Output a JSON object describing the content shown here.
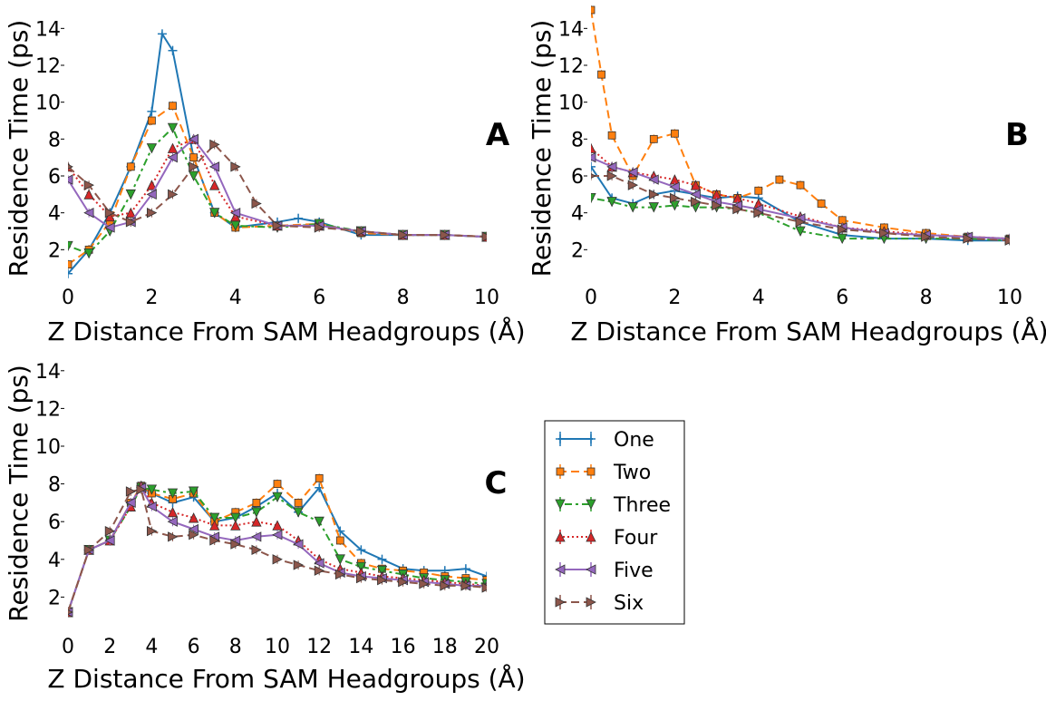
{
  "colors": {
    "One": "#1f77b4",
    "Two": "#ff7f0e",
    "Three": "#2ca02c",
    "Four": "#d62728",
    "Five": "#9467bd",
    "Six": "#8c564b"
  },
  "legend": [
    "One",
    "Two",
    "Three",
    "Four",
    "Five",
    "Six"
  ],
  "chart_data": [
    {
      "type": "line",
      "panel": "A",
      "xlabel": "Z Distance From SAM Headgroups (Å)",
      "ylabel": "Residence Time (ps)",
      "xlim": [
        0,
        10
      ],
      "ylim": [
        0,
        15
      ],
      "xticks": [
        "0",
        "2",
        "4",
        "6",
        "8",
        "10"
      ],
      "yticks": [
        "2",
        "4",
        "6",
        "8",
        "10",
        "12",
        "14"
      ],
      "series": [
        {
          "name": "One",
          "x": [
            0,
            0.5,
            1,
            1.5,
            2,
            2.25,
            2.5,
            3,
            3.5,
            4,
            5,
            5.5,
            6,
            7,
            8,
            9,
            10
          ],
          "y": [
            0.7,
            2.0,
            4.0,
            6.5,
            9.5,
            13.7,
            12.8,
            7.0,
            4.0,
            3.2,
            3.5,
            3.7,
            3.5,
            2.8,
            2.8,
            2.8,
            2.7
          ]
        },
        {
          "name": "Two",
          "x": [
            0,
            0.5,
            1,
            1.5,
            2,
            2.5,
            3,
            3.5,
            4,
            5,
            6,
            7,
            8,
            9,
            10
          ],
          "y": [
            1.2,
            2.0,
            3.5,
            6.5,
            9.0,
            9.8,
            7.0,
            4.0,
            3.2,
            3.3,
            3.4,
            2.9,
            2.8,
            2.8,
            2.7
          ]
        },
        {
          "name": "Three",
          "x": [
            0,
            0.5,
            1,
            1.5,
            2,
            2.5,
            3,
            3.5,
            4,
            5,
            6,
            7,
            8,
            9,
            10
          ],
          "y": [
            2.2,
            1.8,
            3.0,
            5.0,
            7.5,
            8.6,
            6.0,
            4.0,
            3.3,
            3.2,
            3.4,
            3.0,
            2.8,
            2.8,
            2.7
          ]
        },
        {
          "name": "Four",
          "x": [
            0,
            0.5,
            1,
            1.5,
            2,
            2.5,
            3,
            3.5,
            4,
            5,
            6,
            7,
            8,
            9,
            10
          ],
          "y": [
            6.5,
            5.0,
            3.8,
            4.0,
            5.5,
            7.5,
            8.0,
            5.5,
            3.8,
            3.3,
            3.3,
            3.0,
            2.8,
            2.8,
            2.7
          ]
        },
        {
          "name": "Five",
          "x": [
            0,
            0.5,
            1,
            1.5,
            2,
            2.5,
            3,
            3.5,
            4,
            5,
            6,
            7,
            8,
            9,
            10
          ],
          "y": [
            5.8,
            4.0,
            3.2,
            3.5,
            5.0,
            7.0,
            8.0,
            6.5,
            4.0,
            3.3,
            3.3,
            3.0,
            2.8,
            2.8,
            2.7
          ]
        },
        {
          "name": "Six",
          "x": [
            0,
            0.5,
            1,
            1.5,
            2,
            2.5,
            3,
            3.5,
            4,
            4.5,
            5,
            6,
            7,
            8,
            9,
            10
          ],
          "y": [
            6.5,
            5.5,
            4.0,
            3.5,
            4.0,
            5.0,
            6.5,
            7.7,
            6.5,
            4.5,
            3.3,
            3.2,
            3.0,
            2.8,
            2.8,
            2.7
          ]
        }
      ]
    },
    {
      "type": "line",
      "panel": "B",
      "xlabel": "Z Distance From SAM Headgroups (Å)",
      "ylabel": "Residence Time (ps)",
      "xlim": [
        0,
        10
      ],
      "ylim": [
        0,
        15
      ],
      "xticks": [
        "0",
        "2",
        "4",
        "6",
        "8",
        "10"
      ],
      "yticks": [
        "2",
        "4",
        "6",
        "8",
        "10",
        "12",
        "14"
      ],
      "series": [
        {
          "name": "One",
          "x": [
            0,
            0.5,
            1,
            1.5,
            2,
            2.5,
            3,
            3.5,
            4,
            5,
            6,
            7,
            8,
            9,
            10
          ],
          "y": [
            6.5,
            4.8,
            4.5,
            5.0,
            5.2,
            5.0,
            4.8,
            4.9,
            4.8,
            3.5,
            2.8,
            2.6,
            2.6,
            2.5,
            2.5
          ]
        },
        {
          "name": "Two",
          "x": [
            0,
            0.25,
            0.5,
            1,
            1.5,
            2,
            2.5,
            3,
            3.5,
            4,
            4.5,
            5,
            5.5,
            6,
            7,
            8,
            9,
            10
          ],
          "y": [
            15.0,
            11.5,
            8.2,
            6.0,
            8.0,
            8.3,
            5.5,
            5.0,
            4.8,
            5.2,
            5.8,
            5.5,
            4.5,
            3.6,
            3.2,
            2.9,
            2.7,
            2.6
          ]
        },
        {
          "name": "Three",
          "x": [
            0,
            0.5,
            1,
            1.5,
            2,
            2.5,
            3,
            3.5,
            4,
            5,
            6,
            7,
            8,
            9,
            10
          ],
          "y": [
            4.8,
            4.6,
            4.3,
            4.3,
            4.4,
            4.3,
            4.3,
            4.2,
            4.0,
            3.0,
            2.6,
            2.6,
            2.6,
            2.6,
            2.5
          ]
        },
        {
          "name": "Four",
          "x": [
            0,
            0.5,
            1,
            1.5,
            2,
            2.5,
            3,
            3.5,
            4,
            5,
            6,
            7,
            8,
            9,
            10
          ],
          "y": [
            7.5,
            6.5,
            6.2,
            6.0,
            5.8,
            5.5,
            5.0,
            4.8,
            4.5,
            3.8,
            3.2,
            3.0,
            2.8,
            2.7,
            2.6
          ]
        },
        {
          "name": "Five",
          "x": [
            0,
            0.5,
            1,
            1.5,
            2,
            2.5,
            3,
            3.5,
            4,
            5,
            6,
            7,
            8,
            9,
            10
          ],
          "y": [
            7.0,
            6.5,
            6.2,
            5.8,
            5.4,
            5.0,
            4.6,
            4.4,
            4.2,
            3.7,
            3.2,
            2.9,
            2.8,
            2.7,
            2.6
          ]
        },
        {
          "name": "Six",
          "x": [
            0,
            0.5,
            1,
            1.5,
            2,
            2.5,
            3,
            3.5,
            4,
            5,
            6,
            7,
            8,
            9,
            10
          ],
          "y": [
            6.0,
            6.0,
            5.5,
            5.0,
            4.8,
            4.6,
            4.4,
            4.2,
            4.0,
            3.5,
            3.1,
            2.9,
            2.7,
            2.6,
            2.5
          ]
        }
      ]
    },
    {
      "type": "line",
      "panel": "C",
      "xlabel": "Z Distance From SAM Headgroups (Å)",
      "ylabel": "Residence Time (ps)",
      "xlim": [
        0,
        20
      ],
      "ylim": [
        0,
        15
      ],
      "xticks": [
        "0",
        "2",
        "4",
        "6",
        "8",
        "10",
        "12",
        "14",
        "16",
        "18",
        "20"
      ],
      "yticks": [
        "2",
        "4",
        "6",
        "8",
        "10",
        "12",
        "14"
      ],
      "series": [
        {
          "name": "One",
          "x": [
            0,
            1,
            2,
            3,
            3.5,
            4,
            5,
            6,
            7,
            8,
            9,
            10,
            11,
            12,
            13,
            14,
            15,
            16,
            17,
            18,
            19,
            20
          ],
          "y": [
            1.2,
            4.5,
            5.0,
            7.0,
            7.8,
            7.5,
            7.0,
            7.3,
            6.0,
            6.2,
            6.8,
            7.5,
            6.5,
            7.8,
            5.5,
            4.5,
            4.0,
            3.5,
            3.4,
            3.4,
            3.5,
            3.1
          ]
        },
        {
          "name": "Two",
          "x": [
            0,
            1,
            2,
            3,
            3.5,
            4,
            5,
            6,
            7,
            8,
            9,
            10,
            11,
            12,
            13,
            14,
            15,
            16,
            17,
            18,
            19,
            20
          ],
          "y": [
            1.2,
            4.5,
            5.0,
            7.0,
            7.9,
            7.5,
            7.2,
            7.5,
            6.0,
            6.5,
            7.0,
            8.0,
            7.0,
            8.3,
            5.0,
            3.8,
            3.5,
            3.4,
            3.3,
            3.1,
            3.0,
            2.9
          ]
        },
        {
          "name": "Three",
          "x": [
            0,
            1,
            2,
            3,
            3.5,
            4,
            5,
            6,
            7,
            8,
            9,
            10,
            11,
            12,
            13,
            14,
            15,
            16,
            17,
            18,
            19,
            20
          ],
          "y": [
            1.2,
            4.5,
            5.0,
            6.8,
            7.8,
            7.7,
            7.5,
            7.6,
            6.2,
            6.2,
            6.5,
            7.3,
            6.5,
            6.0,
            4.0,
            3.6,
            3.4,
            3.2,
            3.0,
            2.9,
            2.8,
            2.7
          ]
        },
        {
          "name": "Four",
          "x": [
            0,
            1,
            2,
            3,
            3.5,
            4,
            5,
            6,
            7,
            8,
            9,
            10,
            11,
            12,
            13,
            14,
            15,
            16,
            17,
            18,
            19,
            20
          ],
          "y": [
            1.2,
            4.5,
            5.0,
            6.8,
            7.9,
            7.0,
            6.5,
            6.2,
            5.8,
            5.8,
            6.0,
            5.8,
            5.0,
            4.0,
            3.5,
            3.3,
            3.1,
            3.0,
            2.9,
            2.8,
            2.7,
            2.6
          ]
        },
        {
          "name": "Five",
          "x": [
            0,
            1,
            2,
            3,
            3.5,
            4,
            5,
            6,
            7,
            8,
            9,
            10,
            11,
            12,
            13,
            14,
            15,
            16,
            17,
            18,
            19,
            20
          ],
          "y": [
            1.2,
            4.5,
            5.0,
            7.0,
            7.8,
            6.8,
            6.0,
            5.6,
            5.2,
            5.0,
            5.2,
            5.3,
            4.8,
            3.8,
            3.3,
            3.1,
            3.0,
            2.9,
            2.8,
            2.7,
            2.6,
            2.6
          ]
        },
        {
          "name": "Six",
          "x": [
            0,
            1,
            2,
            3,
            3.5,
            4,
            5,
            6,
            7,
            8,
            9,
            10,
            11,
            12,
            13,
            14,
            15,
            16,
            17,
            18,
            19,
            20
          ],
          "y": [
            1.2,
            4.5,
            5.5,
            7.6,
            7.7,
            5.5,
            5.2,
            5.3,
            5.0,
            4.8,
            4.5,
            4.0,
            3.7,
            3.4,
            3.2,
            3.0,
            2.9,
            2.8,
            2.7,
            2.6,
            2.6,
            2.5
          ]
        }
      ]
    }
  ]
}
